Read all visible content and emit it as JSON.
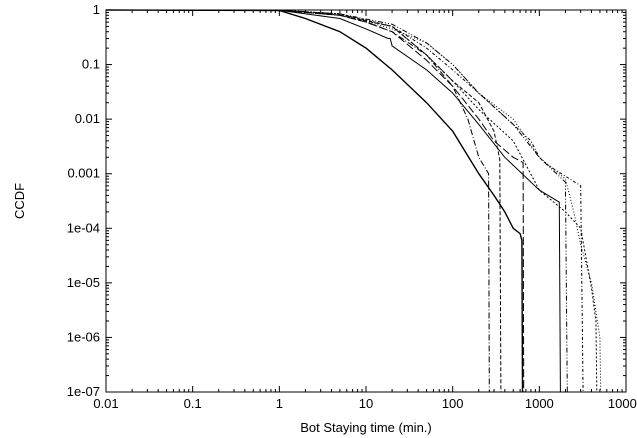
{
  "chart_data": {
    "type": "line",
    "title": "",
    "xlabel": "Bot Staying time (min.)",
    "ylabel": "CCDF",
    "xscale": "log",
    "yscale": "log",
    "xlim": [
      0.01,
      10000
    ],
    "ylim": [
      1e-07,
      1
    ],
    "grid": false,
    "legend": "none",
    "x_ticks": [
      {
        "value": 0.01,
        "label": "0.01"
      },
      {
        "value": 0.1,
        "label": "0.1"
      },
      {
        "value": 1,
        "label": "1"
      },
      {
        "value": 10,
        "label": "10"
      },
      {
        "value": 100,
        "label": "100"
      },
      {
        "value": 1000,
        "label": "1000"
      },
      {
        "value": 10000,
        "label": "10000"
      }
    ],
    "y_ticks": [
      {
        "value": 1,
        "label": "1"
      },
      {
        "value": 0.1,
        "label": "0.1"
      },
      {
        "value": 0.01,
        "label": "0.01"
      },
      {
        "value": 0.001,
        "label": "0.001"
      },
      {
        "value": 0.0001,
        "label": "1e-04"
      },
      {
        "value": 1e-05,
        "label": "1e-05"
      },
      {
        "value": 1e-06,
        "label": "1e-06"
      },
      {
        "value": 1e-07,
        "label": "1e-07"
      }
    ],
    "series": [
      {
        "dash": "",
        "width": 1.4,
        "points": [
          [
            0.01,
            1
          ],
          [
            1,
            0.98
          ],
          [
            2,
            0.7
          ],
          [
            5,
            0.4
          ],
          [
            10,
            0.2
          ],
          [
            20,
            0.08
          ],
          [
            50,
            0.02
          ],
          [
            100,
            0.006
          ],
          [
            200,
            0.001
          ],
          [
            300,
            0.0004
          ],
          [
            400,
            0.0002
          ],
          [
            500,
            0.0001
          ],
          [
            600,
            8e-05
          ],
          [
            630,
            6e-05
          ],
          [
            640,
            1e-07
          ]
        ]
      },
      {
        "dash": "",
        "width": 1.0,
        "points": [
          [
            0.01,
            1
          ],
          [
            1,
            0.99
          ],
          [
            5,
            0.7
          ],
          [
            10,
            0.45
          ],
          [
            18,
            0.3
          ],
          [
            19,
            0.3
          ],
          [
            20,
            0.22
          ],
          [
            50,
            0.08
          ],
          [
            100,
            0.03
          ],
          [
            200,
            0.008
          ],
          [
            400,
            0.002
          ],
          [
            1000,
            0.0005
          ],
          [
            1700,
            0.0003
          ],
          [
            1750,
            1e-07
          ]
        ]
      },
      {
        "dash": "6,2,1,2",
        "width": 1.0,
        "points": [
          [
            0.01,
            1
          ],
          [
            1,
            0.99
          ],
          [
            5,
            0.8
          ],
          [
            10,
            0.6
          ],
          [
            20,
            0.4
          ],
          [
            50,
            0.15
          ],
          [
            100,
            0.04
          ],
          [
            150,
            0.01
          ],
          [
            200,
            0.002
          ],
          [
            260,
            0.001
          ],
          [
            265,
            1e-07
          ]
        ]
      },
      {
        "dash": "8,3",
        "width": 1.0,
        "points": [
          [
            0.01,
            1
          ],
          [
            1,
            0.99
          ],
          [
            5,
            0.8
          ],
          [
            10,
            0.6
          ],
          [
            20,
            0.4
          ],
          [
            50,
            0.12
          ],
          [
            100,
            0.04
          ],
          [
            200,
            0.01
          ],
          [
            300,
            0.004
          ],
          [
            500,
            0.002
          ],
          [
            650,
            0.0016
          ],
          [
            660,
            1e-07
          ]
        ]
      },
      {
        "dash": "4,2",
        "width": 1.0,
        "points": [
          [
            0.01,
            1
          ],
          [
            1,
            0.99
          ],
          [
            5,
            0.8
          ],
          [
            20,
            0.5
          ],
          [
            50,
            0.15
          ],
          [
            100,
            0.05
          ],
          [
            200,
            0.02
          ],
          [
            300,
            0.006
          ],
          [
            350,
            0.0018
          ],
          [
            360,
            1e-07
          ]
        ]
      },
      {
        "dash": "2,2",
        "width": 1.0,
        "points": [
          [
            0.01,
            1
          ],
          [
            1,
            0.99
          ],
          [
            5,
            0.85
          ],
          [
            20,
            0.5
          ],
          [
            50,
            0.15
          ],
          [
            100,
            0.05
          ],
          [
            200,
            0.015
          ],
          [
            500,
            0.004
          ],
          [
            1000,
            0.0005
          ],
          [
            2000,
            0.0002
          ],
          [
            3000,
            0.0001
          ],
          [
            4000,
            8e-06
          ],
          [
            4500,
            2e-06
          ],
          [
            4600,
            1e-07
          ]
        ]
      },
      {
        "dash": "1,2",
        "width": 1.0,
        "points": [
          [
            0.01,
            1
          ],
          [
            1,
            0.99
          ],
          [
            5,
            0.85
          ],
          [
            20,
            0.45
          ],
          [
            50,
            0.25
          ],
          [
            100,
            0.1
          ],
          [
            200,
            0.03
          ],
          [
            500,
            0.01
          ],
          [
            1000,
            0.002
          ],
          [
            2000,
            0.0008
          ],
          [
            2500,
            0.0002
          ],
          [
            3000,
            5e-05
          ],
          [
            4000,
            1e-05
          ],
          [
            5000,
            1e-06
          ],
          [
            5100,
            1e-07
          ]
        ]
      },
      {
        "dash": "5,2,1,2,1,2",
        "width": 1.0,
        "points": [
          [
            0.01,
            1
          ],
          [
            1,
            0.99
          ],
          [
            5,
            0.85
          ],
          [
            20,
            0.55
          ],
          [
            50,
            0.25
          ],
          [
            100,
            0.1
          ],
          [
            200,
            0.03
          ],
          [
            500,
            0.008
          ],
          [
            1000,
            0.002
          ],
          [
            2000,
            0.0007
          ],
          [
            2100,
            1e-07
          ]
        ]
      },
      {
        "dash": "3,2,1,2",
        "width": 1.0,
        "points": [
          [
            0.01,
            1
          ],
          [
            1,
            0.99
          ],
          [
            5,
            0.85
          ],
          [
            20,
            0.5
          ],
          [
            50,
            0.2
          ],
          [
            100,
            0.08
          ],
          [
            200,
            0.03
          ],
          [
            500,
            0.008
          ],
          [
            800,
            0.004
          ],
          [
            1000,
            0.002
          ],
          [
            1200,
            0.0015
          ],
          [
            2000,
            0.0009
          ],
          [
            3000,
            0.0006
          ],
          [
            3200,
            1e-07
          ]
        ]
      }
    ]
  }
}
